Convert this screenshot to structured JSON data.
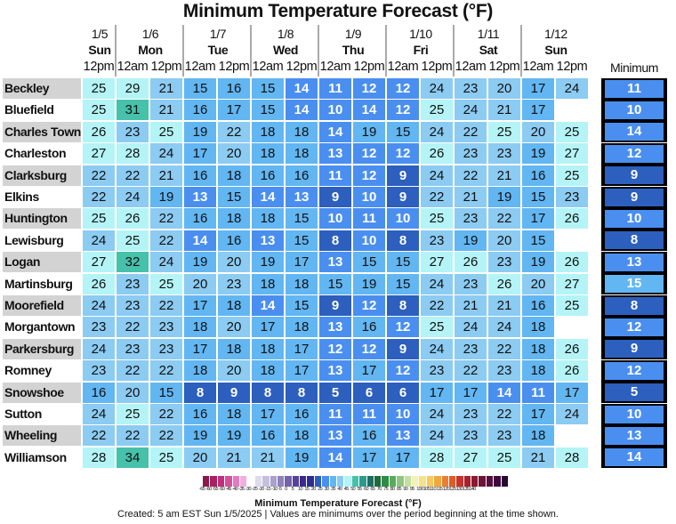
{
  "title": "Minimum Temperature Forecast (°F)",
  "days": [
    {
      "date": "1/5",
      "day": "Sun",
      "times": [
        "12pm"
      ]
    },
    {
      "date": "1/6",
      "day": "Mon",
      "times": [
        "12am",
        "12pm"
      ]
    },
    {
      "date": "1/7",
      "day": "Tue",
      "times": [
        "12am",
        "12pm"
      ]
    },
    {
      "date": "1/8",
      "day": "Wed",
      "times": [
        "12am",
        "12pm"
      ]
    },
    {
      "date": "1/9",
      "day": "Thu",
      "times": [
        "12am",
        "12pm"
      ]
    },
    {
      "date": "1/10",
      "day": "Fri",
      "times": [
        "12am",
        "12pm"
      ]
    },
    {
      "date": "1/11",
      "day": "Sat",
      "times": [
        "12am",
        "12pm"
      ]
    },
    {
      "date": "1/12",
      "day": "Sun",
      "times": [
        "12am",
        "12pm"
      ]
    }
  ],
  "minimum_header": "Minimum",
  "chart_data": {
    "type": "heatmap",
    "title": "Minimum Temperature Forecast (°F)",
    "rows": [
      {
        "name": "Beckley",
        "values": [
          25,
          29,
          21,
          15,
          16,
          15,
          14,
          11,
          12,
          12,
          24,
          23,
          20,
          17,
          24
        ],
        "min": 11
      },
      {
        "name": "Bluefield",
        "values": [
          25,
          31,
          21,
          16,
          17,
          15,
          14,
          10,
          14,
          12,
          25,
          24,
          21,
          17,
          null
        ],
        "min": 10
      },
      {
        "name": "Charles Town",
        "values": [
          26,
          23,
          25,
          19,
          22,
          18,
          18,
          14,
          19,
          15,
          24,
          22,
          25,
          20,
          25
        ],
        "min": 14
      },
      {
        "name": "Charleston",
        "values": [
          27,
          28,
          24,
          17,
          20,
          18,
          18,
          13,
          12,
          12,
          26,
          23,
          23,
          19,
          27
        ],
        "min": 12
      },
      {
        "name": "Clarksburg",
        "values": [
          22,
          22,
          21,
          16,
          18,
          16,
          16,
          11,
          12,
          9,
          24,
          22,
          21,
          16,
          25
        ],
        "min": 9
      },
      {
        "name": "Elkins",
        "values": [
          22,
          24,
          19,
          13,
          15,
          14,
          13,
          9,
          10,
          9,
          22,
          21,
          19,
          15,
          23
        ],
        "min": 9
      },
      {
        "name": "Huntington",
        "values": [
          25,
          26,
          22,
          16,
          18,
          18,
          15,
          10,
          11,
          10,
          25,
          23,
          22,
          17,
          26
        ],
        "min": 10
      },
      {
        "name": "Lewisburg",
        "values": [
          24,
          25,
          22,
          14,
          16,
          13,
          15,
          8,
          10,
          8,
          23,
          19,
          20,
          15,
          null
        ],
        "min": 8
      },
      {
        "name": "Logan",
        "values": [
          27,
          32,
          24,
          19,
          20,
          19,
          17,
          13,
          15,
          15,
          27,
          26,
          23,
          19,
          26
        ],
        "min": 13
      },
      {
        "name": "Martinsburg",
        "values": [
          26,
          23,
          25,
          20,
          23,
          18,
          18,
          15,
          19,
          15,
          24,
          23,
          26,
          20,
          27
        ],
        "min": 15
      },
      {
        "name": "Moorefield",
        "values": [
          24,
          23,
          22,
          17,
          18,
          14,
          15,
          9,
          12,
          8,
          22,
          21,
          21,
          16,
          25
        ],
        "min": 8
      },
      {
        "name": "Morgantown",
        "values": [
          23,
          22,
          23,
          18,
          20,
          17,
          18,
          13,
          16,
          12,
          25,
          24,
          24,
          18,
          null
        ],
        "min": 12
      },
      {
        "name": "Parkersburg",
        "values": [
          24,
          23,
          23,
          17,
          18,
          18,
          17,
          12,
          12,
          9,
          24,
          23,
          22,
          18,
          26
        ],
        "min": 9
      },
      {
        "name": "Romney",
        "values": [
          23,
          22,
          22,
          18,
          20,
          18,
          17,
          13,
          17,
          12,
          23,
          22,
          23,
          18,
          26
        ],
        "min": 12
      },
      {
        "name": "Snowshoe",
        "values": [
          16,
          20,
          15,
          8,
          9,
          8,
          8,
          5,
          6,
          6,
          17,
          17,
          14,
          11,
          17
        ],
        "min": 5
      },
      {
        "name": "Sutton",
        "values": [
          24,
          25,
          22,
          16,
          18,
          17,
          16,
          11,
          11,
          10,
          24,
          23,
          22,
          17,
          24
        ],
        "min": 10
      },
      {
        "name": "Wheeling",
        "values": [
          22,
          22,
          22,
          19,
          19,
          16,
          18,
          13,
          16,
          13,
          24,
          23,
          23,
          18,
          null
        ],
        "min": 13
      },
      {
        "name": "Williamson",
        "values": [
          28,
          34,
          25,
          20,
          21,
          21,
          19,
          14,
          17,
          17,
          28,
          27,
          25,
          21,
          28
        ],
        "min": 14
      }
    ],
    "bin_colors": {
      "5": "#2c5fbe",
      "10": "#4a8ff0",
      "15": "#62b6f2",
      "20": "#8ccbf2",
      "25": "#b4f4f6",
      "30": "#46c1aa"
    },
    "colorbar": {
      "label": "Minimum Temperature Forecast (°F)",
      "ticks": [
        "-65",
        "-60",
        "-55",
        "-50",
        "-45",
        "-40",
        "-35",
        "-30",
        "-25",
        "-20",
        "-15",
        "-10",
        "-5",
        "0",
        "5",
        "10",
        "15",
        "20",
        "25",
        "30",
        "35",
        "40",
        "45",
        "50",
        "55",
        "60",
        "65",
        "70",
        "75",
        "80",
        "85",
        "90",
        "95",
        "100",
        "105",
        "110",
        "115",
        "120",
        "125",
        "130",
        "135",
        "140"
      ],
      "colors": [
        "#8b1a4b",
        "#a8205e",
        "#c42d7c",
        "#d6509e",
        "#e47bbf",
        "#f2aee0",
        "#ffffff",
        "#dcdcec",
        "#c4c0dc",
        "#a9a2cc",
        "#8f83bb",
        "#7462aa",
        "#574499",
        "#3a2b88",
        "#2a2f8f",
        "#2c5fbe",
        "#4a8ff0",
        "#62b6f2",
        "#8ccbf2",
        "#b4f4f6",
        "#46c1aa",
        "#2f9a8c",
        "#1f6e64",
        "#1f6a3a",
        "#2f8b45",
        "#5aab5c",
        "#8fc77e",
        "#c2e0a0",
        "#f2f2b4",
        "#f6e28a",
        "#f6c85e",
        "#f2a640",
        "#ec8030",
        "#e05a28",
        "#c8322a",
        "#a8202c",
        "#8a1a30",
        "#6e1438",
        "#561040",
        "#3e0a3e",
        "#2a0632"
      ]
    }
  },
  "footer": "Created: 5 am EST Sun 1/5/2025  |  Values are minimums over the period beginning at the time shown."
}
